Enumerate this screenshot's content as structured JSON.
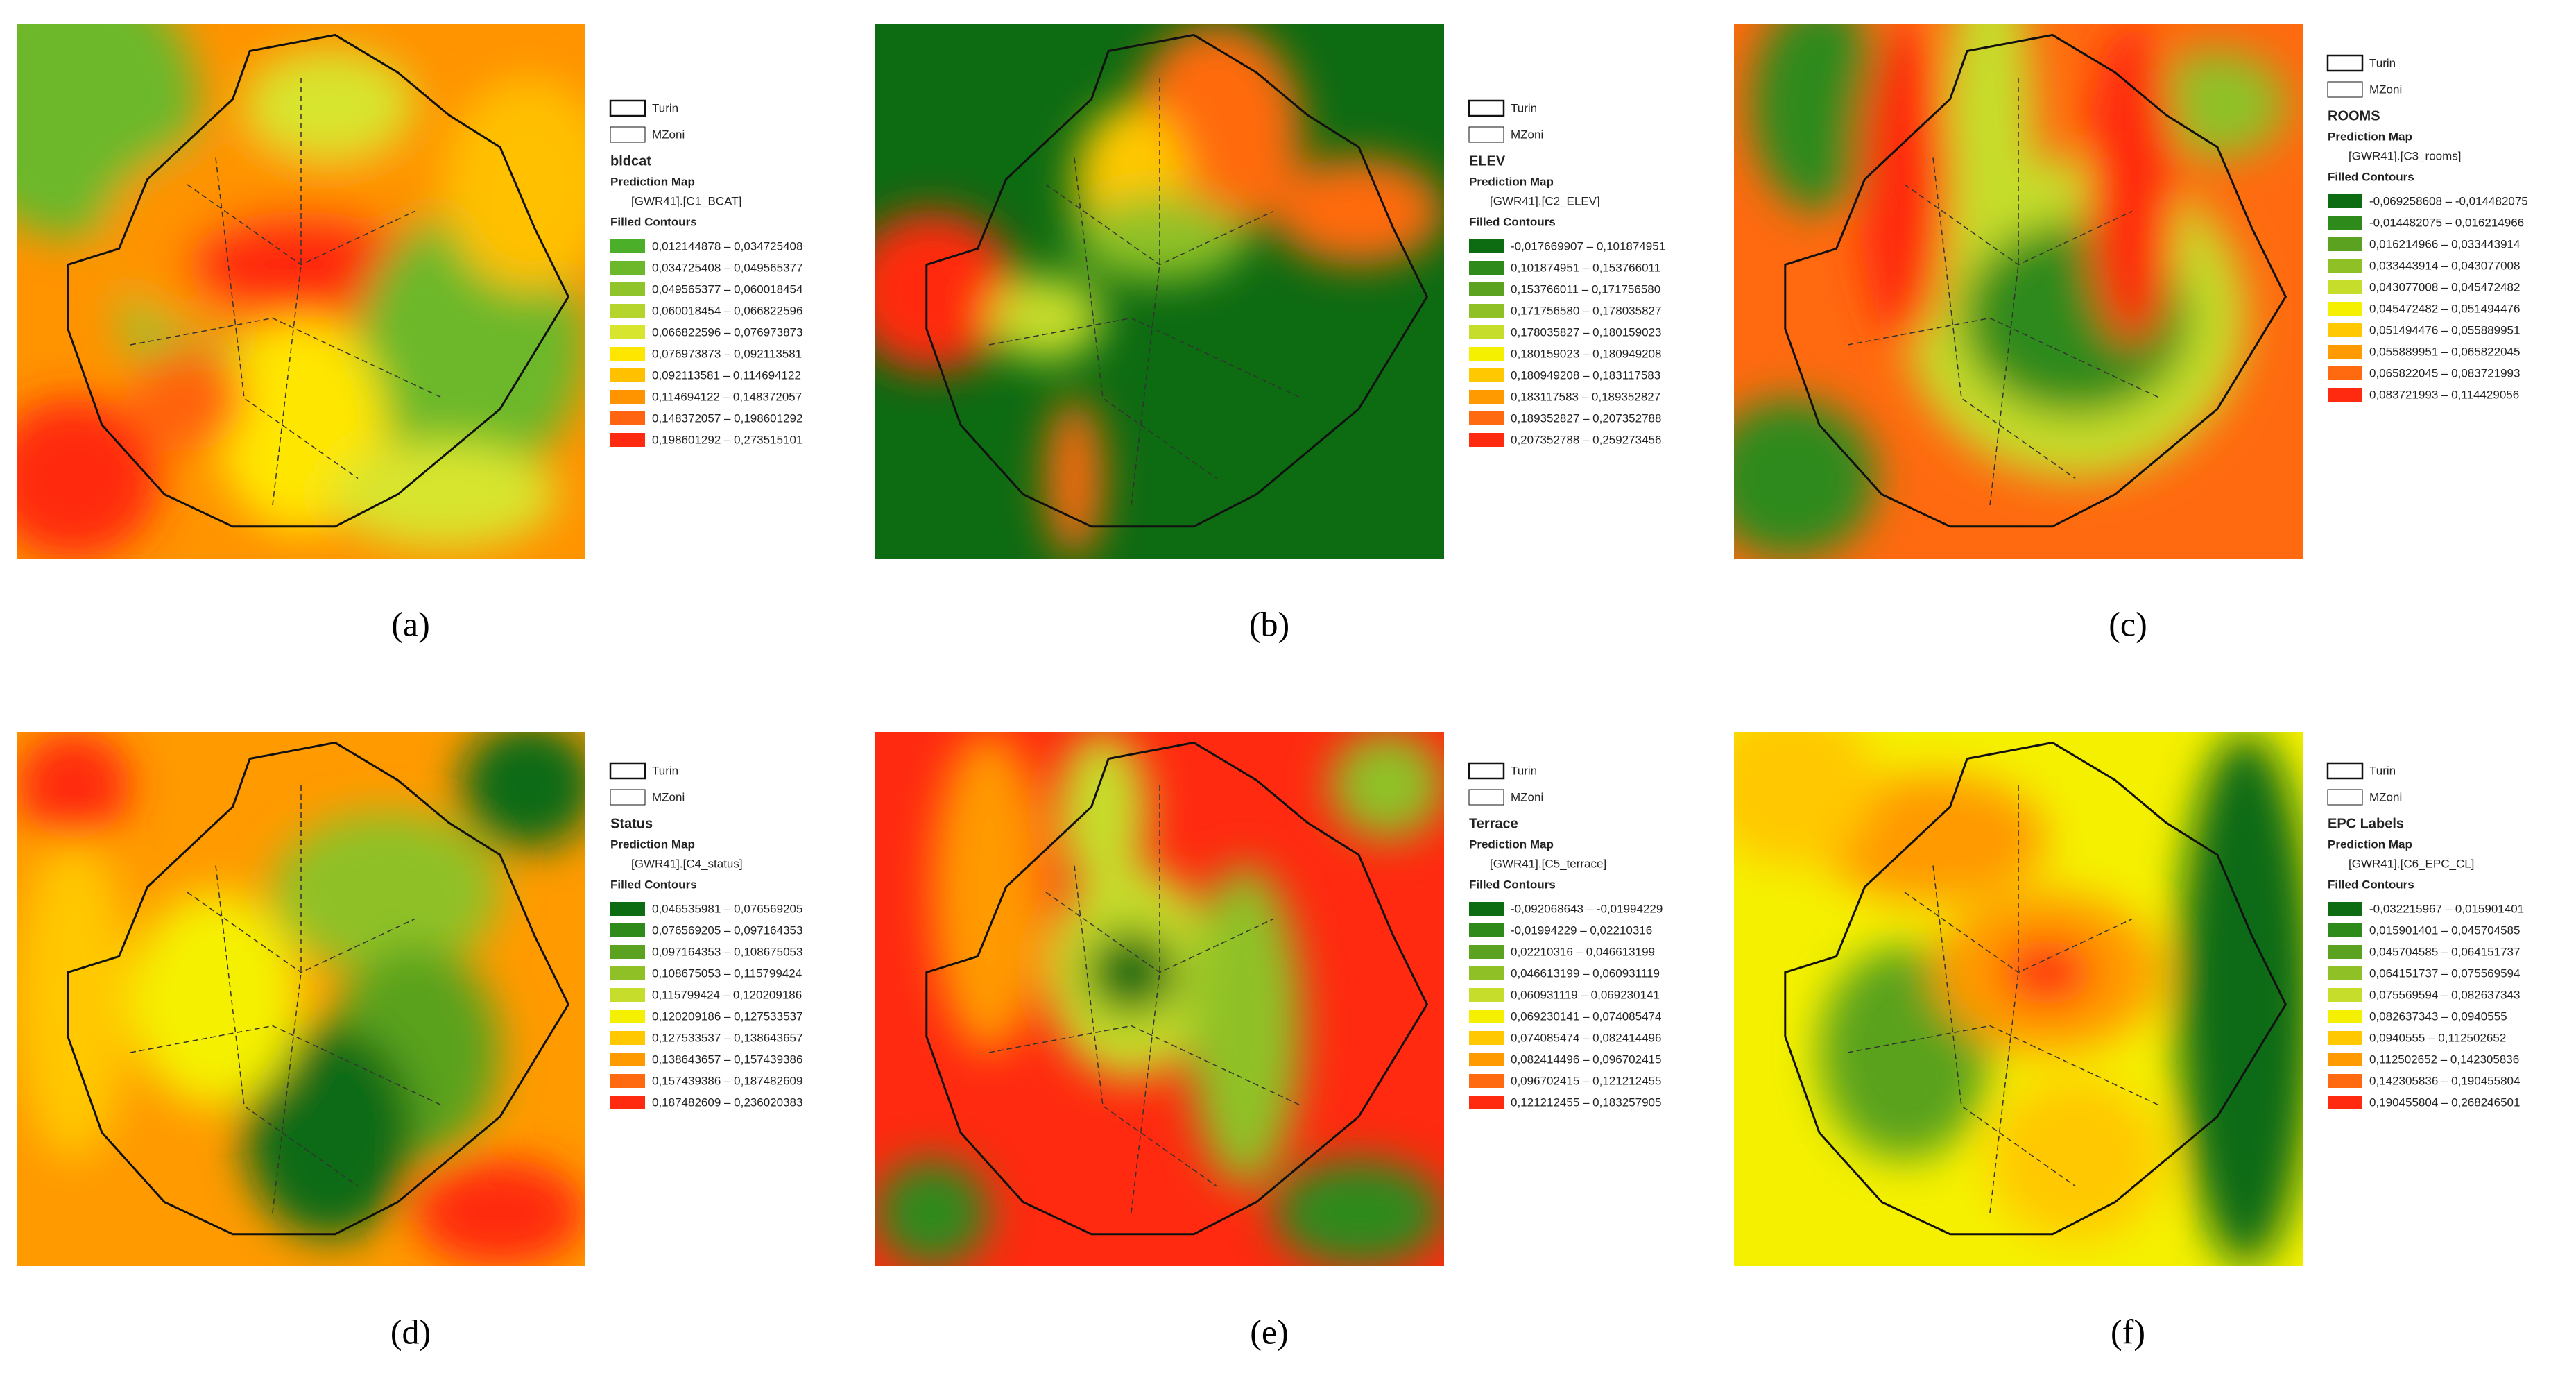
{
  "panels": [
    {
      "caption": "(a)",
      "boundaries": [
        "Turin",
        "MZoni"
      ],
      "layer": "bldcat",
      "prediction": "Prediction Map",
      "field": "[GWR41].[C1_BCAT]",
      "renderer": "Filled Contours",
      "colors": [
        "#4caf2a",
        "#6cb82a",
        "#8fc42a",
        "#b5d42c",
        "#d8e52e",
        "#ffe600",
        "#ffc000",
        "#ff9300",
        "#ff6410",
        "#ff2a10"
      ],
      "classes": [
        "0,012144878 – 0,034725408",
        "0,034725408 – 0,049565377",
        "0,049565377 – 0,060018454",
        "0,060018454 – 0,066822596",
        "0,066822596 – 0,076973873",
        "0,076973873 – 0,092113581",
        "0,092113581 – 0,114694122",
        "0,114694122 – 0,148372057",
        "0,148372057 – 0,198601292",
        "0,198601292 – 0,273515101"
      ]
    },
    {
      "caption": "(b)",
      "boundaries": [
        "Turin",
        "MZoni"
      ],
      "layer": "ELEV",
      "prediction": "Prediction Map",
      "field": "[GWR41].[C2_ELEV]",
      "renderer": "Filled Contours",
      "colors": [
        "#0d6b12",
        "#2f8a1c",
        "#5aa21f",
        "#8fc126",
        "#c6dd2b",
        "#f5f000",
        "#ffc800",
        "#ff9a00",
        "#ff6a10",
        "#ff2a10"
      ],
      "classes": [
        "-0,017669907 – 0,101874951",
        "0,101874951 – 0,153766011",
        "0,153766011 – 0,171756580",
        "0,171756580 – 0,178035827",
        "0,178035827 – 0,180159023",
        "0,180159023 – 0,180949208",
        "0,180949208 – 0,183117583",
        "0,183117583 – 0,189352827",
        "0,189352827 – 0,207352788",
        "0,207352788 – 0,259273456"
      ]
    },
    {
      "caption": "(c)",
      "boundaries": [
        "Turin",
        "MZoni"
      ],
      "layer": "ROOMS",
      "prediction": "Prediction Map",
      "field": "[GWR41].[C3_rooms]",
      "renderer": "Filled Contours",
      "colors": [
        "#0d6b12",
        "#2f8a1c",
        "#5aa21f",
        "#8fc126",
        "#c6dd2b",
        "#f5f000",
        "#ffc800",
        "#ff9a00",
        "#ff6a10",
        "#ff2a10"
      ],
      "classes": [
        "-0,069258608 – -0,014482075",
        "-0,014482075 – 0,016214966",
        "0,016214966 – 0,033443914",
        "0,033443914 – 0,043077008",
        "0,043077008 – 0,045472482",
        "0,045472482 – 0,051494476",
        "0,051494476 – 0,055889951",
        "0,055889951 – 0,065822045",
        "0,065822045 – 0,083721993",
        "0,083721993 – 0,114429056"
      ]
    },
    {
      "caption": "(d)",
      "boundaries": [
        "Turin",
        "MZoni"
      ],
      "layer": "Status",
      "prediction": "Prediction Map",
      "field": "[GWR41].[C4_status]",
      "renderer": "Filled Contours",
      "colors": [
        "#0d6b12",
        "#2f8a1c",
        "#5aa21f",
        "#8fc126",
        "#c6dd2b",
        "#f5f000",
        "#ffc800",
        "#ff9a00",
        "#ff6a10",
        "#ff2a10"
      ],
      "classes": [
        "0,046535981 – 0,076569205",
        "0,076569205 – 0,097164353",
        "0,097164353 – 0,108675053",
        "0,108675053 – 0,115799424",
        "0,115799424 – 0,120209186",
        "0,120209186 – 0,127533537",
        "0,127533537 – 0,138643657",
        "0,138643657 – 0,157439386",
        "0,157439386 – 0,187482609",
        "0,187482609 – 0,236020383"
      ]
    },
    {
      "caption": "(e)",
      "boundaries": [
        "Turin",
        "MZoni"
      ],
      "layer": "Terrace",
      "prediction": "Prediction Map",
      "field": "[GWR41].[C5_terrace]",
      "renderer": "Filled Contours",
      "colors": [
        "#0d6b12",
        "#2f8a1c",
        "#5aa21f",
        "#8fc126",
        "#c6dd2b",
        "#f5f000",
        "#ffc800",
        "#ff9a00",
        "#ff6a10",
        "#ff2a10"
      ],
      "classes": [
        "-0,092068643 – -0,01994229",
        "-0,01994229 – 0,02210316",
        "0,02210316 – 0,046613199",
        "0,046613199 – 0,060931119",
        "0,060931119 – 0,069230141",
        "0,069230141 – 0,074085474",
        "0,074085474 – 0,082414496",
        "0,082414496 – 0,096702415",
        "0,096702415 – 0,121212455",
        "0,121212455 – 0,183257905"
      ]
    },
    {
      "caption": "(f)",
      "boundaries": [
        "Turin",
        "MZoni"
      ],
      "layer": "EPC Labels",
      "prediction": "Prediction Map",
      "field": "[GWR41].[C6_EPC_CL]",
      "renderer": "Filled Contours",
      "colors": [
        "#0d6b12",
        "#2f8a1c",
        "#5aa21f",
        "#8fc126",
        "#c6dd2b",
        "#f5f000",
        "#ffc800",
        "#ff9a00",
        "#ff6a10",
        "#ff2a10"
      ],
      "classes": [
        "-0,032215967 – 0,015901401",
        "0,015901401 – 0,045704585",
        "0,045704585 – 0,064151737",
        "0,064151737 – 0,075569594",
        "0,075569594 – 0,082637343",
        "0,082637343 – 0,0940555",
        "0,0940555 – 0,112502652",
        "0,112502652 – 0,142305836",
        "0,142305836 – 0,190455804",
        "0,190455804 – 0,268246501"
      ]
    }
  ]
}
